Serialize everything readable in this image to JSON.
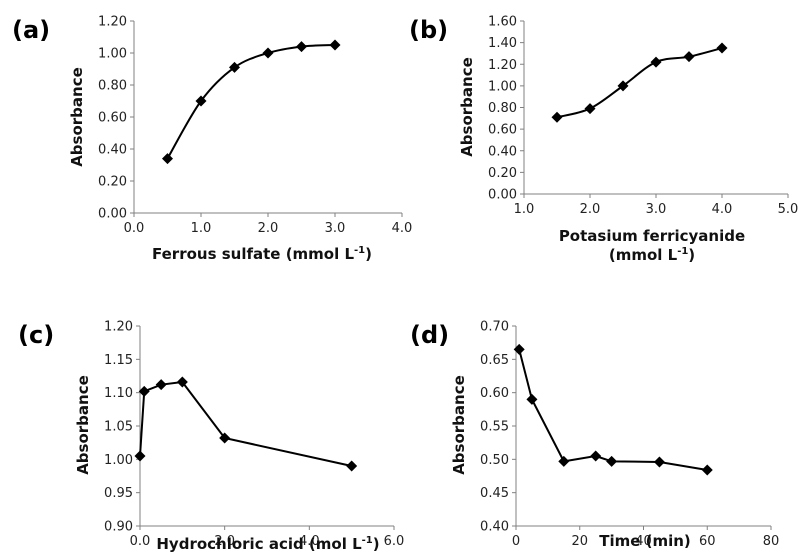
{
  "chart_data": [
    {
      "type": "line",
      "panel_label": "(a)",
      "xlabel": "Ferrous sulfate (mmol L",
      "xlabel_sup": "-1",
      "xlabel_close": ")",
      "xlabel_line2": "",
      "ylabel": "Absorbance",
      "xlim": [
        0,
        4
      ],
      "ylim": [
        0,
        1.2
      ],
      "xticks": [
        "0.0",
        "1.0",
        "2.0",
        "3.0",
        "4.0"
      ],
      "yticks": [
        "0.00",
        "0.20",
        "0.40",
        "0.60",
        "0.80",
        "1.00",
        "1.20"
      ],
      "x": [
        0.5,
        1.0,
        1.5,
        2.0,
        2.5,
        3.0
      ],
      "y": [
        0.34,
        0.7,
        0.91,
        1.0,
        1.04,
        1.05
      ],
      "smooth": true,
      "marker": "diamond",
      "color": "#000000"
    },
    {
      "type": "line",
      "panel_label": "(b)",
      "xlabel": "Potasium ferricyanide",
      "xlabel_sup": "",
      "xlabel_close": "",
      "xlabel_line2": "(mmol L",
      "xlabel_line2_sup": "-1",
      "xlabel_line2_close": ")",
      "ylabel": "Absorbance",
      "xlim": [
        1,
        5
      ],
      "ylim": [
        0,
        1.6
      ],
      "xticks": [
        "1.0",
        "2.0",
        "3.0",
        "4.0",
        "5.0"
      ],
      "yticks": [
        "0.00",
        "0.20",
        "0.40",
        "0.60",
        "0.80",
        "1.00",
        "1.20",
        "1.40",
        "1.60"
      ],
      "x": [
        1.5,
        2.0,
        2.5,
        3.0,
        3.5,
        4.0
      ],
      "y": [
        0.71,
        0.79,
        1.0,
        1.22,
        1.27,
        1.35
      ],
      "smooth": true,
      "marker": "diamond",
      "color": "#000000"
    },
    {
      "type": "line",
      "panel_label": "(c)",
      "xlabel": "Hydrochloric acid (mol L",
      "xlabel_sup": "-1",
      "xlabel_close": ")",
      "xlabel_line2": "",
      "ylabel": "Absorbance",
      "xlim": [
        0,
        6
      ],
      "ylim": [
        0.9,
        1.2
      ],
      "xticks": [
        "0.0",
        "2.0",
        "4.0",
        "6.0"
      ],
      "yticks": [
        "0.90",
        "0.95",
        "1.00",
        "1.05",
        "1.10",
        "1.15",
        "1.20"
      ],
      "x": [
        0.0,
        0.1,
        0.5,
        1.0,
        2.0,
        5.0
      ],
      "y": [
        1.005,
        1.102,
        1.112,
        1.116,
        1.032,
        0.99
      ],
      "smooth": false,
      "marker": "diamond",
      "color": "#000000"
    },
    {
      "type": "line",
      "panel_label": "(d)",
      "xlabel": "Time (min)",
      "xlabel_sup": "",
      "xlabel_close": "",
      "xlabel_line2": "",
      "ylabel": "Absorbance",
      "xlim": [
        0,
        80
      ],
      "ylim": [
        0.4,
        0.7
      ],
      "xticks": [
        "0",
        "20",
        "40",
        "60",
        "80"
      ],
      "yticks": [
        "0.40",
        "0.45",
        "0.50",
        "0.55",
        "0.60",
        "0.65",
        "0.70"
      ],
      "x": [
        1,
        5,
        15,
        25,
        30,
        45,
        60
      ],
      "y": [
        0.665,
        0.59,
        0.497,
        0.505,
        0.497,
        0.496,
        0.484
      ],
      "smooth": false,
      "marker": "diamond",
      "color": "#000000"
    }
  ]
}
